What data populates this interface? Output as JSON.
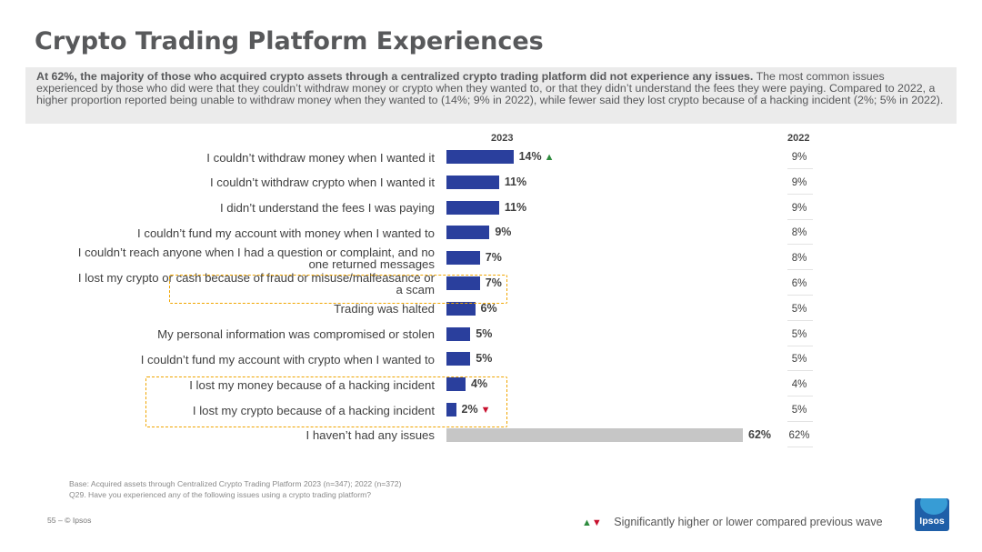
{
  "title": "Crypto Trading Platform Experiences",
  "summary": {
    "bold": "At 62%, the majority of those who acquired crypto assets through a centralized crypto trading platform did not experience any issues.",
    "rest": " The most common issues experienced by those who did were that they couldn’t withdraw money or crypto when they wanted to, or that they didn’t understand the fees they were paying. Compared to 2022, a higher proportion reported being unable to withdraw money when they wanted to (14%; 9% in 2022), while fewer said they lost crypto because of a hacking incident (2%; 5% in 2022)."
  },
  "chart_data": {
    "type": "bar",
    "orientation": "horizontal",
    "series": [
      {
        "name": "2023",
        "color": "#2a3f9d",
        "highlight_color": "#c6c6c6"
      },
      {
        "name": "2022"
      }
    ],
    "categories": [
      "I couldn’t withdraw money when I wanted it",
      "I couldn’t withdraw crypto when I wanted it",
      "I didn’t understand the fees I was paying",
      "I couldn’t fund my account with money when I wanted to",
      "I couldn’t reach anyone when I had a question or complaint, and no one returned messages",
      "I lost my crypto or cash because of fraud or misuse/malfeasance or a scam",
      "Trading was halted",
      "My personal information was compromised or stolen",
      "I couldn’t fund my account with crypto when I wanted to",
      "I lost my money because of a hacking incident",
      "I lost my crypto because of a hacking incident",
      "I haven’t had any issues"
    ],
    "values_2023": [
      14,
      11,
      11,
      9,
      7,
      7,
      6,
      5,
      5,
      4,
      2,
      62
    ],
    "labels_2023": [
      "14%",
      "11%",
      "11%",
      "9%",
      "7%",
      "7%",
      "6%",
      "5%",
      "5%",
      "4%",
      "2%",
      "62%"
    ],
    "values_2022": [
      9,
      9,
      9,
      8,
      8,
      6,
      5,
      5,
      5,
      4,
      5,
      62
    ],
    "labels_2022": [
      "9%",
      "9%",
      "9%",
      "8%",
      "8%",
      "6%",
      "5%",
      "5%",
      "5%",
      "4%",
      "5%",
      "62%"
    ],
    "significance": [
      "up",
      "",
      "",
      "",
      "",
      "",
      "",
      "",
      "",
      "",
      "down",
      ""
    ],
    "highlighted_rows": [
      5,
      9,
      10
    ],
    "grey_rows": [
      11
    ],
    "xlim": [
      0,
      62
    ]
  },
  "footnote": {
    "base": "Base: Acquired assets through Centralized Crypto Trading Platform 2023 (n=347); 2022 (n=372)",
    "question": "Q29. Have you experienced any of the following issues using a crypto trading platform?"
  },
  "page_footer": "55 –  © Ipsos",
  "legend": {
    "up_symbol": "▲",
    "down_symbol": "▼",
    "text": "Significantly higher or lower compared previous wave"
  },
  "logo_text": "Ipsos"
}
